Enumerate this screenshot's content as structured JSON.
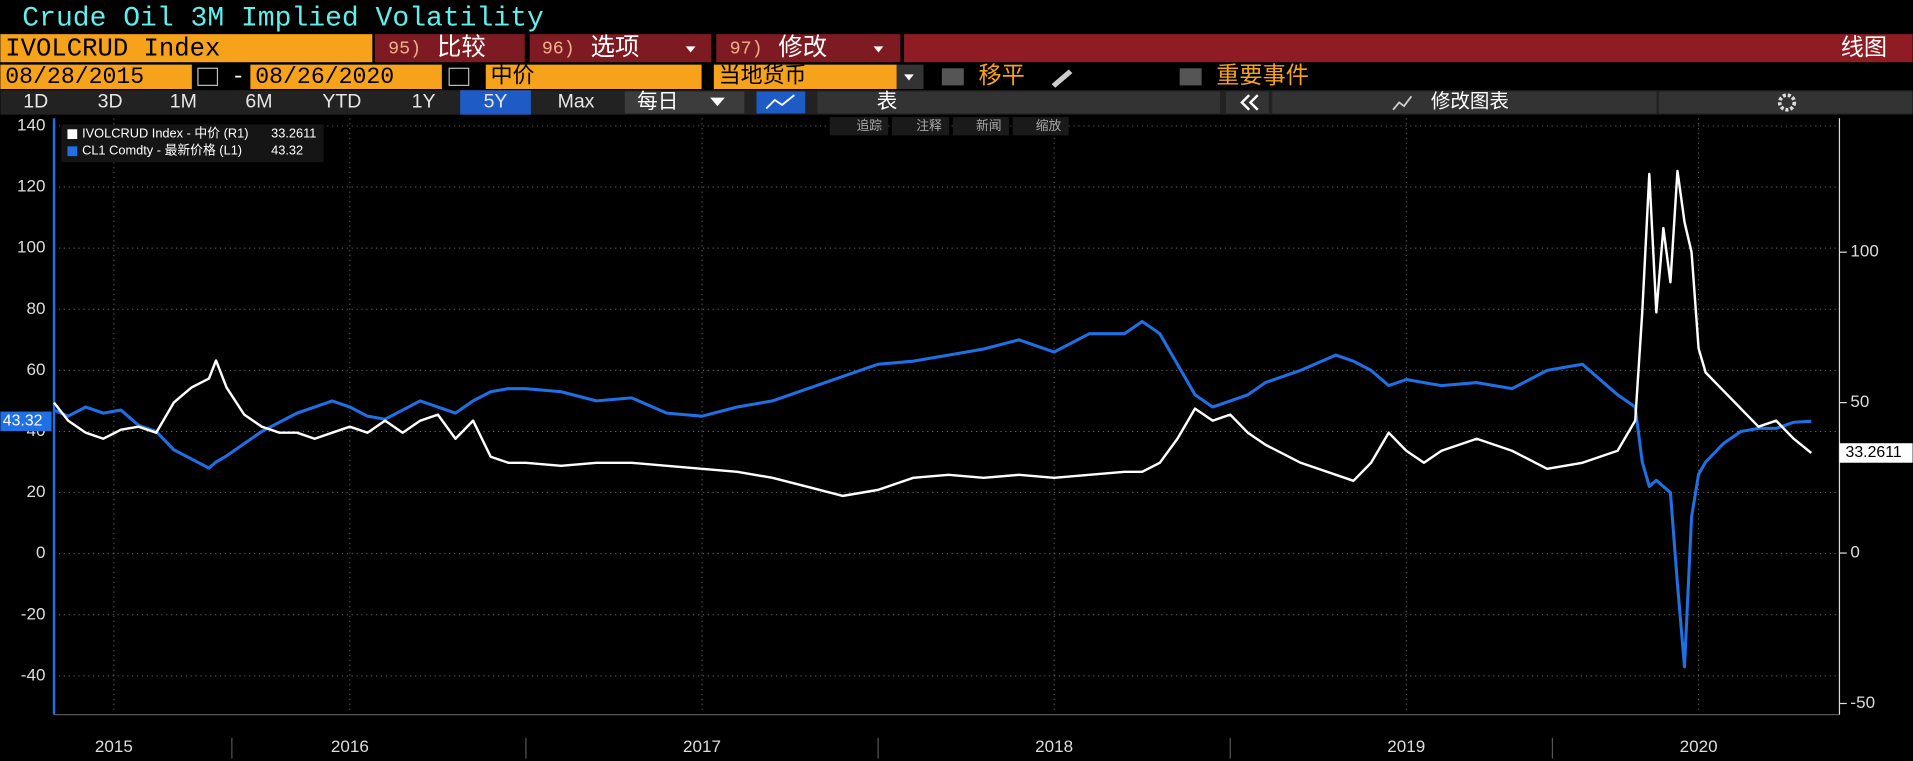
{
  "ui": {
    "title": "Crude Oil 3M Implied Volatility",
    "security": "IVOLCRUD Index",
    "buttons": [
      {
        "num": "95)",
        "label": "比较"
      },
      {
        "num": "96)",
        "label": "选项"
      },
      {
        "num": "97)",
        "label": "修改"
      }
    ],
    "view": "线图",
    "start_date": "08/28/2015",
    "date_sep": "-",
    "end_date": "08/26/2020",
    "price_field": "中价",
    "currency": "当地货币",
    "smooth": "移平",
    "events": "重要事件",
    "ranges": [
      "1D",
      "3D",
      "1M",
      "6M",
      "YTD",
      "1Y",
      "5Y",
      "Max"
    ],
    "frequency": "每日",
    "table": "表",
    "edit_chart": "修改图表",
    "tools": [
      "追踪",
      "注释",
      "新闻",
      "缩放"
    ]
  },
  "chart_data": {
    "type": "line",
    "x": [
      2015.66,
      2015.7,
      2015.75,
      2015.8,
      2015.85,
      2015.9,
      2015.95,
      2016.0,
      2016.05,
      2016.1,
      2016.12,
      2016.15,
      2016.2,
      2016.25,
      2016.3,
      2016.35,
      2016.4,
      2016.45,
      2016.5,
      2016.55,
      2016.6,
      2016.65,
      2016.7,
      2016.75,
      2016.8,
      2016.85,
      2016.9,
      2016.95,
      2017.0,
      2017.1,
      2017.2,
      2017.3,
      2017.4,
      2017.5,
      2017.6,
      2017.7,
      2017.8,
      2017.9,
      2018.0,
      2018.1,
      2018.2,
      2018.3,
      2018.4,
      2018.5,
      2018.6,
      2018.7,
      2018.75,
      2018.8,
      2018.85,
      2018.9,
      2018.95,
      2019.0,
      2019.05,
      2019.1,
      2019.2,
      2019.3,
      2019.35,
      2019.4,
      2019.45,
      2019.5,
      2019.55,
      2019.6,
      2019.7,
      2019.8,
      2019.9,
      2020.0,
      2020.1,
      2020.15,
      2020.17,
      2020.19,
      2020.21,
      2020.23,
      2020.25,
      2020.27,
      2020.29,
      2020.31,
      2020.33,
      2020.35,
      2020.4,
      2020.45,
      2020.5,
      2020.55,
      2020.6,
      2020.65
    ],
    "series": [
      {
        "name": "IVOLCRUD Index - 中价 (R1)",
        "color": "#ffffff",
        "axis": "y2",
        "values": [
          50,
          44,
          40,
          38,
          41,
          42,
          40,
          50,
          55,
          58,
          64,
          55,
          46,
          42,
          40,
          40,
          38,
          40,
          42,
          40,
          44,
          40,
          44,
          46,
          38,
          44,
          32,
          30,
          30,
          29,
          30,
          30,
          29,
          28,
          27,
          25,
          22,
          19,
          21,
          25,
          26,
          25,
          26,
          25,
          26,
          27,
          27,
          30,
          38,
          48,
          44,
          46,
          40,
          36,
          30,
          26,
          24,
          30,
          40,
          34,
          30,
          34,
          38,
          34,
          28,
          30,
          34,
          44,
          80,
          126,
          80,
          108,
          90,
          127,
          110,
          100,
          68,
          60,
          54,
          48,
          42,
          44,
          38,
          33.2611
        ]
      },
      {
        "name": "CL1 Comdty - 最新价格 (L1)",
        "color": "#1f6fe5",
        "values": [
          47,
          45,
          48,
          46,
          47,
          42,
          40,
          34,
          31,
          28,
          30,
          32,
          36,
          40,
          43,
          46,
          48,
          50,
          48,
          45,
          44,
          47,
          50,
          48,
          46,
          50,
          53,
          54,
          54,
          53,
          50,
          51,
          46,
          45,
          48,
          50,
          54,
          58,
          62,
          63,
          65,
          67,
          70,
          66,
          72,
          72,
          76,
          72,
          62,
          52,
          48,
          50,
          52,
          56,
          60,
          65,
          63,
          60,
          55,
          57,
          56,
          55,
          56,
          54,
          60,
          62,
          52,
          48,
          30,
          22,
          24,
          22,
          20,
          -10,
          -37,
          12,
          26,
          30,
          36,
          40,
          41,
          41,
          43,
          43.32
        ]
      }
    ],
    "xlim": [
      2015.66,
      2020.73
    ],
    "xticks": [
      {
        "value": 2015.83,
        "label": "2015"
      },
      {
        "value": 2016.5,
        "label": "2016"
      },
      {
        "value": 2017.5,
        "label": "2017"
      },
      {
        "value": 2018.5,
        "label": "2018"
      },
      {
        "value": 2019.5,
        "label": "2019"
      },
      {
        "value": 2020.33,
        "label": "2020"
      }
    ],
    "ylim": [
      -51.5,
      142.5
    ],
    "yticks": [
      -40,
      -20,
      0,
      20,
      40,
      60,
      80,
      100,
      120,
      140
    ],
    "y2lim": [
      -52.5,
      144.5
    ],
    "y2ticks": [
      -50,
      0,
      50,
      100
    ],
    "grid": true,
    "legend": "upper left"
  }
}
